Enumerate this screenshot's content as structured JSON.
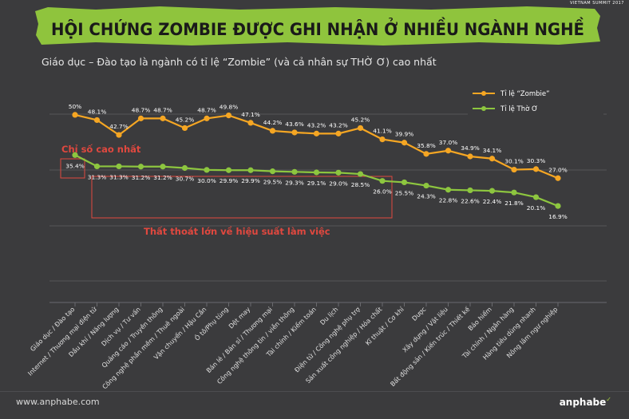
{
  "header": {
    "title": "HỘI CHỨNG ZOMBIE ĐƯỢC GHI NHẬN Ở NHIỀU NGÀNH NGHỀ",
    "summit_label": "VIETNAM SUMMIT 2017",
    "subtitle": "Giáo dục – Đào tạo là ngành có tỉ lệ “Zombie” (và cả nhân sự THỜ Ơ) cao nhất"
  },
  "annotations": {
    "highest": "Chỉ số cao nhất",
    "loss": "Thất thoát lớn về hiệu suất làm việc"
  },
  "footer": {
    "url": "www.anphabe.com",
    "brand": "anphabe"
  },
  "colors": {
    "banner_green": "#8fc43d",
    "zombie_line": "#f5a623",
    "tho_o_line": "#8dc63f",
    "annotation_red": "#e0483f"
  },
  "chart_data": {
    "type": "line",
    "categories": [
      "Giáo dục / Đào tạo",
      "Internet / Thương mại điện tử",
      "Dầu khí / Năng lượng",
      "Dịch vụ / Tư vấn",
      "Quảng cáo / Truyền thông",
      "Công nghệ phần mềm / Thuê ngoài",
      "Vận chuyển / Hậu Cần",
      "Ô tô/Phụ tùng",
      "Dệt may",
      "Bán lẻ / Bán sỉ / Thương mại",
      "Công nghệ thông tin / viễn thông",
      "Tài chính / Kiểm toán",
      "Du lịch",
      "Điện tử / Công nghệ phụ trợ",
      "Sản xuất công nghiệp / Hóa chất",
      "Kĩ thuật / Cơ khí",
      "Dược",
      "Xây dựng / Vật liệu",
      "Bất động sản / Kiến trúc / Thiết kế",
      "Bảo hiểm",
      "Tài chính / Ngân hàng",
      "Hàng tiêu dùng nhanh",
      "Nông lâm ngư nghiệp"
    ],
    "series": [
      {
        "name": "Tỉ lệ “Zombie”",
        "values": [
          50,
          48.1,
          42.7,
          48.7,
          48.7,
          45.2,
          48.7,
          49.8,
          47.1,
          44.2,
          43.6,
          43.2,
          43.2,
          45.2,
          41.1,
          39.9,
          35.8,
          37.0,
          34.9,
          34.1,
          30.1,
          30.3,
          27.0
        ],
        "labels": [
          "50%",
          "48.1%",
          "42.7%",
          "48.7%",
          "48.7%",
          "45.2%",
          "48.7%",
          "49.8%",
          "47.1%",
          "44.2%",
          "43.6%",
          "43.2%",
          "43.2%",
          "45.2%",
          "41.1%",
          "39.9%",
          "35.8%",
          "37.0%",
          "34.9%",
          "34.1%",
          "30.1%",
          "30.3%",
          "27.0%"
        ]
      },
      {
        "name": "Tỉ lệ Thờ Ơ",
        "values": [
          35.4,
          31.3,
          31.3,
          31.2,
          31.2,
          30.7,
          30.0,
          29.9,
          29.9,
          29.5,
          29.3,
          29.1,
          29.0,
          28.5,
          26.0,
          25.5,
          24.3,
          22.8,
          22.6,
          22.4,
          21.8,
          20.1,
          16.9
        ],
        "labels": [
          "35.4%",
          "31.3%",
          "31.3%",
          "31.2%",
          "31.2%",
          "30.7%",
          "30.0%",
          "29.9%",
          "29.9%",
          "29.5%",
          "29.3%",
          "29.1%",
          "29.0%",
          "28.5%",
          "26.0%",
          "25.5%",
          "24.3%",
          "22.8%",
          "22.6%",
          "22.4%",
          "21.8%",
          "20.1%",
          "16.9%"
        ]
      }
    ],
    "grid": true,
    "legend_position": "top-right"
  }
}
